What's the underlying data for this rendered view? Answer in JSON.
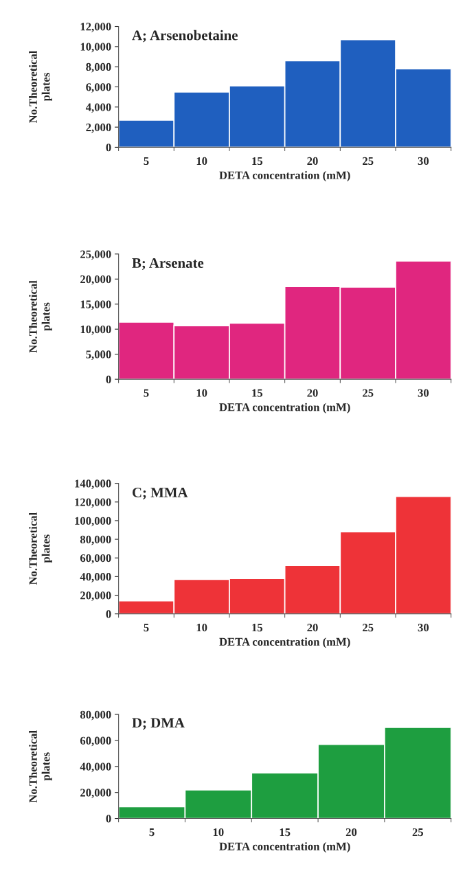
{
  "chart_data": [
    {
      "type": "bar",
      "title": "A; Arsenobetaine",
      "xlabel": "DETA concentration (mM)",
      "ylabel": "No.Theoretical\nplates",
      "categories": [
        "5",
        "10",
        "15",
        "20",
        "25",
        "30"
      ],
      "series": [
        {
          "color": "#1f5fbf",
          "values": [
            2700,
            5500,
            6100,
            8600,
            10700,
            7800
          ]
        }
      ],
      "ylim": [
        0,
        12000
      ],
      "yticks": [
        {
          "value": 0,
          "label": "0"
        },
        {
          "value": 2000,
          "label": "2,000"
        },
        {
          "value": 4000,
          "label": "4,000"
        },
        {
          "value": 6000,
          "label": "6,000"
        },
        {
          "value": 8000,
          "label": "8,000"
        },
        {
          "value": 10000,
          "label": "10,000"
        },
        {
          "value": 12000,
          "label": "12,000"
        }
      ],
      "grid": false,
      "legend": false
    },
    {
      "type": "bar",
      "title": "B; Arsenate",
      "xlabel": "DETA concentration (mM)",
      "ylabel": "No.Theoretical\nplates",
      "categories": [
        "5",
        "10",
        "15",
        "20",
        "25",
        "30"
      ],
      "series": [
        {
          "color": "#e0267f",
          "values": [
            11400,
            10700,
            11200,
            18500,
            18400,
            23600
          ]
        }
      ],
      "ylim": [
        0,
        25000
      ],
      "yticks": [
        {
          "value": 0,
          "label": "0"
        },
        {
          "value": 5000,
          "label": "5,000"
        },
        {
          "value": 10000,
          "label": "10,000"
        },
        {
          "value": 15000,
          "label": "15,000"
        },
        {
          "value": 20000,
          "label": "20,000"
        },
        {
          "value": 25000,
          "label": "25,000"
        }
      ],
      "grid": false,
      "legend": false
    },
    {
      "type": "bar",
      "title": "C; MMA",
      "xlabel": "DETA concentration (mM)",
      "ylabel": "No.Theoretical\nplates",
      "categories": [
        "5",
        "10",
        "15",
        "20",
        "25",
        "30"
      ],
      "series": [
        {
          "color": "#ee3338",
          "values": [
            14000,
            37000,
            38000,
            52000,
            88000,
            126000
          ]
        }
      ],
      "ylim": [
        0,
        140000
      ],
      "yticks": [
        {
          "value": 0,
          "label": "0"
        },
        {
          "value": 20000,
          "label": "20,000"
        },
        {
          "value": 40000,
          "label": "40,000"
        },
        {
          "value": 60000,
          "label": "60,000"
        },
        {
          "value": 80000,
          "label": "80,000"
        },
        {
          "value": 100000,
          "label": "100,000"
        },
        {
          "value": 120000,
          "label": "120,000"
        },
        {
          "value": 140000,
          "label": "140,000"
        }
      ],
      "grid": false,
      "legend": false
    },
    {
      "type": "bar",
      "title": "D; DMA",
      "xlabel": "DETA concentration (mM)",
      "ylabel": "No.Theoretical\nplates",
      "categories": [
        "5",
        "10",
        "15",
        "20",
        "25"
      ],
      "series": [
        {
          "color": "#1e9e40",
          "values": [
            9000,
            22000,
            35000,
            57000,
            70000
          ]
        }
      ],
      "ylim": [
        0,
        80000
      ],
      "yticks": [
        {
          "value": 0,
          "label": "0"
        },
        {
          "value": 20000,
          "label": "20,000"
        },
        {
          "value": 40000,
          "label": "40,000"
        },
        {
          "value": 60000,
          "label": "60,000"
        },
        {
          "value": 80000,
          "label": "80,000"
        }
      ],
      "grid": false,
      "legend": false
    }
  ]
}
